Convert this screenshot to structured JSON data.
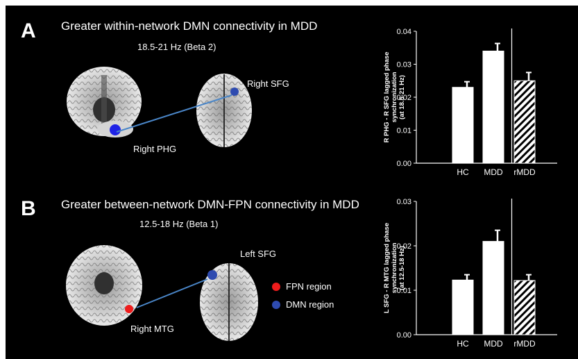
{
  "panels": [
    {
      "letter": "A",
      "title": "Greater within-network DMN connectivity in MDD",
      "band": "18.5-21 Hz (Beta 2)",
      "regions": {
        "source": "Right PHG",
        "target": "Right SFG"
      }
    },
    {
      "letter": "B",
      "title": "Greater between-network DMN-FPN connectivity in MDD",
      "band": "12.5-18 Hz (Beta 1)",
      "regions": {
        "source": "Right MTG",
        "target": "Left SFG"
      }
    }
  ],
  "legend": {
    "fpn": {
      "label": "FPN region",
      "color": "#ee1c1c"
    },
    "dmn": {
      "label": "DMN region",
      "color": "#2e4bb0"
    }
  },
  "colors": {
    "dmn_dot_a": "#1e22e6",
    "connection_line": "#4a86c8",
    "bar_fill": "#ffffff"
  },
  "chart_data": [
    {
      "type": "bar",
      "categories": [
        "HC",
        "MDD",
        "rMDD"
      ],
      "values": [
        0.023,
        0.034,
        0.025
      ],
      "errors": [
        0.0017,
        0.0023,
        0.0025
      ],
      "hatched": [
        false,
        false,
        true
      ],
      "ylabel": [
        "R PHG - R SFG lagged phase",
        "synchronization",
        "(at 18.5-21 Hz)"
      ],
      "ylim": [
        0,
        0.04
      ],
      "yticks": [
        "0.00",
        "0.01",
        "0.02",
        "0.03",
        "0.04"
      ],
      "separator_after_category": 1
    },
    {
      "type": "bar",
      "categories": [
        "HC",
        "MDD",
        "rMDD"
      ],
      "values": [
        0.0123,
        0.021,
        0.0122
      ],
      "errors": [
        0.0012,
        0.0025,
        0.0013
      ],
      "hatched": [
        false,
        false,
        true
      ],
      "ylabel": [
        "L SFG - R MTG lagged phase",
        "synchronization",
        "(at 12.5-18 Hz)"
      ],
      "ylim": [
        0,
        0.03
      ],
      "yticks": [
        "0.00",
        "0.01",
        "0.02",
        "0.03"
      ],
      "separator_after_category": 1
    }
  ]
}
